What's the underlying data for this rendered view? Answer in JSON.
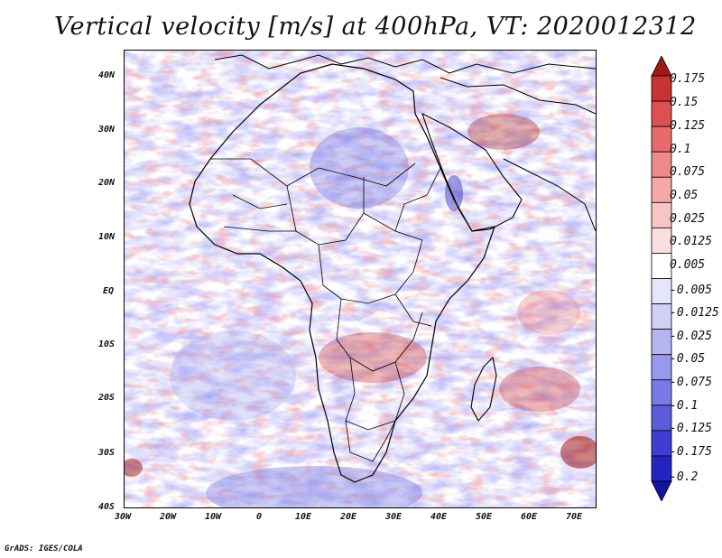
{
  "title": "Vertical velocity [m/s] at 400hPa, VT: 2020012312",
  "credit": "GrADS: IGES/COLA",
  "map": {
    "lon_range": [
      -30,
      75
    ],
    "lat_range": [
      -40,
      45
    ],
    "lat_labels": [
      "40N",
      "30N",
      "20N",
      "10N",
      "EQ",
      "10S",
      "20S",
      "30S",
      "40S"
    ],
    "lat_values": [
      40,
      30,
      20,
      10,
      0,
      -10,
      -20,
      -30,
      -40
    ],
    "lon_labels": [
      "30W",
      "20W",
      "10W",
      "0",
      "10E",
      "20E",
      "30E",
      "40E",
      "50E",
      "60E",
      "70E"
    ],
    "lon_values": [
      -30,
      -20,
      -10,
      0,
      10,
      20,
      30,
      40,
      50,
      60,
      70
    ]
  },
  "colorbar": {
    "labels": [
      "0.175",
      "0.15",
      "0.125",
      "0.1",
      "0.075",
      "0.05",
      "0.025",
      "0.0125",
      "0.005",
      "-0.005",
      "-0.0125",
      "-0.025",
      "-0.05",
      "-0.075",
      "-0.1",
      "-0.125",
      "-0.175",
      "-0.2"
    ],
    "colors": [
      "#a01818",
      "#c83232",
      "#dc5050",
      "#e86a6a",
      "#f08a8a",
      "#f5a8a8",
      "#f9c4c4",
      "#fcdede",
      "#ffffff",
      "#e6e6fb",
      "#cfcff7",
      "#b4b4f2",
      "#9898ec",
      "#7a7ae4",
      "#5c5cdb",
      "#3e3ed0",
      "#2424c0",
      "#1414a0"
    ]
  }
}
